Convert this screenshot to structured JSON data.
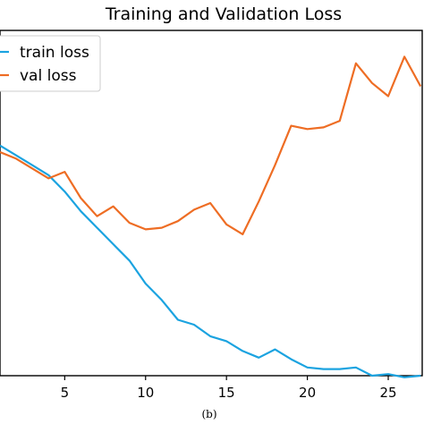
{
  "caption": "(b)",
  "chart_data": {
    "type": "line",
    "title": "Training and Validation Loss",
    "xlabel": "",
    "ylabel": "",
    "xlim": [
      1,
      27.1
    ],
    "ylim": [
      0.1,
      1.15
    ],
    "xticks": [
      5,
      10,
      15,
      20,
      25
    ],
    "grid": false,
    "legend_position": "top-left",
    "series": [
      {
        "name": "train loss",
        "color": "#1ba3e0",
        "x": [
          1,
          2,
          3,
          4,
          5,
          6,
          7,
          8,
          9,
          10,
          11,
          12,
          13,
          14,
          15,
          16,
          17,
          18,
          19,
          20,
          21,
          22,
          23,
          24,
          25,
          26,
          27
        ],
        "y": [
          0.8,
          0.77,
          0.74,
          0.71,
          0.66,
          0.6,
          0.55,
          0.5,
          0.45,
          0.38,
          0.33,
          0.27,
          0.255,
          0.22,
          0.205,
          0.175,
          0.155,
          0.18,
          0.15,
          0.125,
          0.12,
          0.12,
          0.125,
          0.1,
          0.105,
          0.095,
          0.1
        ]
      },
      {
        "name": "val loss",
        "color": "#ee6d24",
        "x": [
          1,
          2,
          3,
          4,
          5,
          6,
          7,
          8,
          9,
          10,
          11,
          12,
          13,
          14,
          15,
          16,
          17,
          18,
          19,
          20,
          21,
          22,
          23,
          24,
          25,
          26,
          27
        ],
        "y": [
          0.78,
          0.76,
          0.73,
          0.7,
          0.72,
          0.64,
          0.585,
          0.615,
          0.565,
          0.545,
          0.55,
          0.57,
          0.605,
          0.625,
          0.56,
          0.53,
          0.63,
          0.74,
          0.86,
          0.85,
          0.855,
          0.875,
          1.05,
          0.99,
          0.95,
          1.07,
          0.98
        ]
      }
    ]
  }
}
